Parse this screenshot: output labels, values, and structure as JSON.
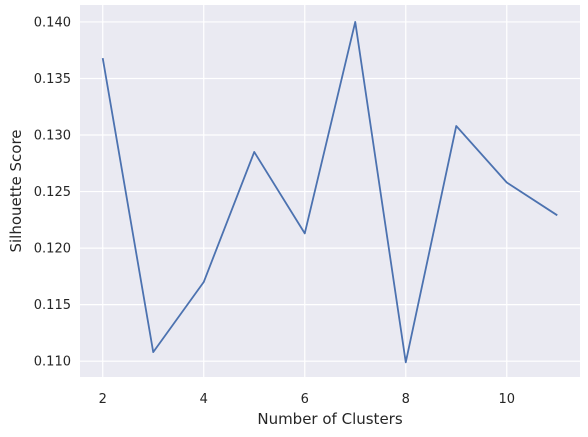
{
  "chart_data": {
    "type": "line",
    "xlabel": "Number of Clusters",
    "ylabel": "Silhouette Score",
    "x": [
      2,
      3,
      4,
      5,
      6,
      7,
      8,
      9,
      10,
      11
    ],
    "series": [
      {
        "values": [
          0.1368,
          0.1108,
          0.117,
          0.1285,
          0.1213,
          0.14,
          0.1099,
          0.1308,
          0.1258,
          0.1229
        ]
      }
    ],
    "xlim": [
      1.55,
      11.45
    ],
    "ylim": [
      0.1086,
      0.1415
    ],
    "xticks": [
      2,
      4,
      6,
      8,
      10
    ],
    "xtick_labels": [
      "2",
      "4",
      "6",
      "8",
      "10"
    ],
    "yticks": [
      0.11,
      0.115,
      0.12,
      0.125,
      0.13,
      0.135,
      0.14
    ],
    "ytick_labels": [
      "0.110",
      "0.115",
      "0.120",
      "0.125",
      "0.130",
      "0.135",
      "0.140"
    ],
    "grid": true,
    "style": {
      "background": "#EAEAF2",
      "grid_color": "#FFFFFF",
      "line_color": "#4C72B0"
    }
  }
}
